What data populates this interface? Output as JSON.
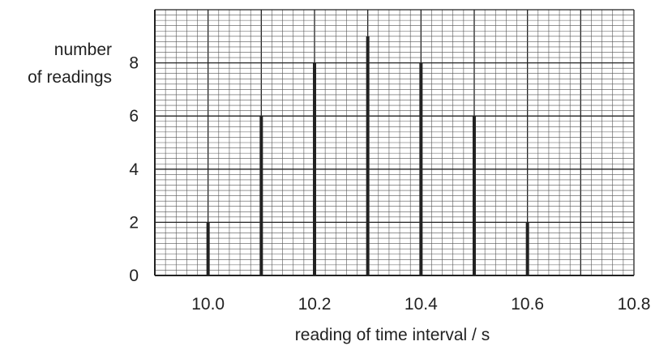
{
  "chart_data": {
    "type": "bar",
    "xlabel": "reading of time interval / s",
    "ylabel_lines": [
      "number",
      "of readings"
    ],
    "x": [
      10.0,
      10.1,
      10.2,
      10.3,
      10.4,
      10.5,
      10.6
    ],
    "values": [
      2,
      6,
      8,
      9,
      8,
      6,
      2
    ],
    "xlim": [
      9.9,
      10.8
    ],
    "ylim": [
      0,
      10
    ],
    "x_tick_labels": [
      "10.0",
      "10.2",
      "10.4",
      "10.6",
      "10.8"
    ],
    "y_tick_labels": [
      "0",
      "2",
      "4",
      "6",
      "8"
    ],
    "grid": true,
    "colors": {
      "bar": "#222222",
      "grid_minor": "#555555",
      "grid_major": "#222222",
      "text": "#222222"
    }
  }
}
